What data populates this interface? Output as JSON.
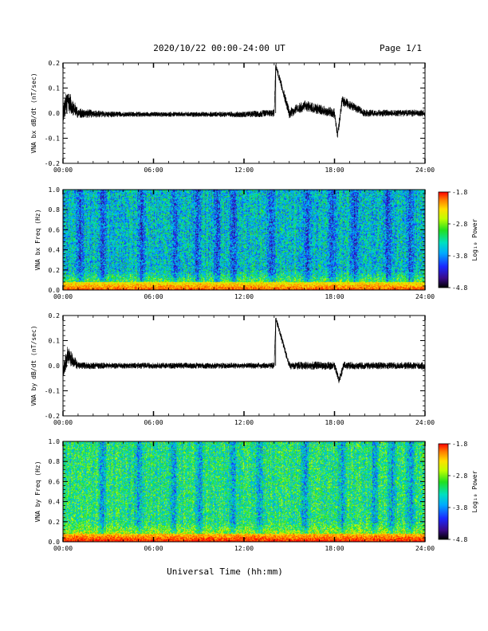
{
  "header": {
    "title": "2020/10/22  00:00-24:00 UT",
    "page": "Page 1/1"
  },
  "x_axis": {
    "ticks": [
      "00:00",
      "06:00",
      "12:00",
      "18:00",
      "24:00"
    ],
    "hours": [
      0,
      6,
      12,
      18,
      24
    ],
    "xlabel": "Universal Time (hh:mm)"
  },
  "colorbar": {
    "label": "Log₁₀ Power",
    "ticks": [
      "-1.8",
      "-2.8",
      "-3.8",
      "-4.8"
    ],
    "tick_values": [
      -1.8,
      -2.8,
      -3.8,
      -4.8
    ],
    "range": [
      -4.8,
      -1.8
    ],
    "colors": [
      "#000000",
      "#3a0a8a",
      "#1a28ff",
      "#00aaff",
      "#00e0c0",
      "#20e020",
      "#c0ff00",
      "#ffe000",
      "#ff7a00",
      "#ff0000"
    ]
  },
  "chart_data": [
    {
      "type": "line",
      "ylabel": "VNA bx dB/dt (nT/sec)",
      "xlim": [
        0,
        24
      ],
      "ylim": [
        -0.2,
        0.2
      ],
      "yticks": [
        "0.2",
        "0.1",
        "0.0",
        "-0.1",
        "-0.2"
      ],
      "ytick_values": [
        0.2,
        0.1,
        0.0,
        -0.1,
        -0.2
      ],
      "series": [
        {
          "x": [
            0,
            0.3,
            1,
            3,
            6,
            9,
            12,
            14,
            14.1,
            15,
            16,
            18,
            18.2,
            18.5,
            20,
            22,
            24
          ],
          "y": [
            0.0,
            0.05,
            0.0,
            -0.005,
            -0.005,
            -0.005,
            -0.005,
            0.0,
            0.19,
            0.0,
            0.03,
            0.0,
            -0.09,
            0.05,
            0.0,
            0.0,
            0.0
          ],
          "amplitude": [
            0.04,
            0.05,
            0.02,
            0.012,
            0.01,
            0.01,
            0.012,
            0.015,
            0.015,
            0.02,
            0.022,
            0.02,
            0.02,
            0.02,
            0.015,
            0.013,
            0.015
          ]
        }
      ]
    },
    {
      "type": "heatmap",
      "ylabel": "VNA bx Freq (Hz)",
      "xlim": [
        0,
        24
      ],
      "ylim": [
        0.0,
        1.0
      ],
      "yticks": [
        "1.0",
        "0.8",
        "0.6",
        "0.4",
        "0.2",
        "0.0"
      ],
      "ytick_values": [
        1.0,
        0.8,
        0.6,
        0.4,
        0.2,
        0.0
      ],
      "zlim": [
        -4.8,
        -1.8
      ],
      "typical_power": -3.6,
      "low_freq_power": -2.6,
      "quiet_bands_hours": [
        1.1,
        2.6,
        5.2,
        7.4,
        8.9,
        10.2,
        11.3,
        13.8,
        16.2,
        17.8,
        19.3,
        21.5,
        23.0
      ]
    },
    {
      "type": "line",
      "ylabel": "VNA by dB/dt (nT/sec)",
      "xlim": [
        0,
        24
      ],
      "ylim": [
        -0.2,
        0.2
      ],
      "yticks": [
        "0.2",
        "0.1",
        "0.0",
        "-0.1",
        "-0.2"
      ],
      "ytick_values": [
        0.2,
        0.1,
        0.0,
        -0.1,
        -0.2
      ],
      "series": [
        {
          "x": [
            0,
            0.3,
            1,
            3,
            6,
            9,
            12,
            14,
            14.1,
            15,
            16,
            18,
            18.3,
            18.6,
            20,
            22,
            24
          ],
          "y": [
            -0.02,
            0.04,
            0.0,
            0.0,
            0.0,
            0.0,
            0.0,
            0.0,
            0.19,
            0.0,
            0.0,
            0.0,
            -0.06,
            0.0,
            0.0,
            0.0,
            0.0
          ],
          "amplitude": [
            0.03,
            0.04,
            0.015,
            0.012,
            0.012,
            0.012,
            0.012,
            0.013,
            0.013,
            0.015,
            0.017,
            0.016,
            0.016,
            0.016,
            0.014,
            0.014,
            0.015
          ]
        }
      ]
    },
    {
      "type": "heatmap",
      "ylabel": "VNA by Freq (Hz)",
      "xlim": [
        0,
        24
      ],
      "ylim": [
        0.0,
        1.0
      ],
      "yticks": [
        "1.0",
        "0.8",
        "0.6",
        "0.4",
        "0.2",
        "0.0"
      ],
      "ytick_values": [
        1.0,
        0.8,
        0.6,
        0.4,
        0.2,
        0.0
      ],
      "zlim": [
        -4.8,
        -1.8
      ],
      "typical_power": -3.3,
      "low_freq_power": -2.4,
      "quiet_bands_hours": [
        2.6,
        5.0,
        7.3,
        9.0,
        11.2,
        13.0,
        16.0,
        18.5,
        20.6,
        21.8,
        23.0
      ]
    }
  ]
}
